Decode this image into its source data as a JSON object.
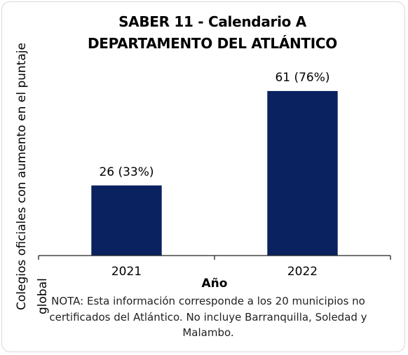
{
  "chart_data": {
    "type": "bar",
    "title": [
      "SABER 11 - Calendario A",
      "DEPARTAMENTO DEL ATLÁNTICO"
    ],
    "categories": [
      "2021",
      "2022"
    ],
    "values": [
      26,
      61
    ],
    "data_labels": [
      "26 (33%)",
      "61 (76%)"
    ],
    "xlabel": "Año",
    "ylabel": [
      "Colegios oficiales con aumento en el puntaje",
      "global"
    ],
    "ylim": [
      0,
      68
    ],
    "grid": false,
    "legend": "none",
    "bar_color": "#0b2260",
    "note": [
      "NOTA: Esta información corresponde a los 20 municipios no",
      "certificados del Atlántico. No incluye Barranquilla, Soledad y",
      "Malambo."
    ]
  }
}
